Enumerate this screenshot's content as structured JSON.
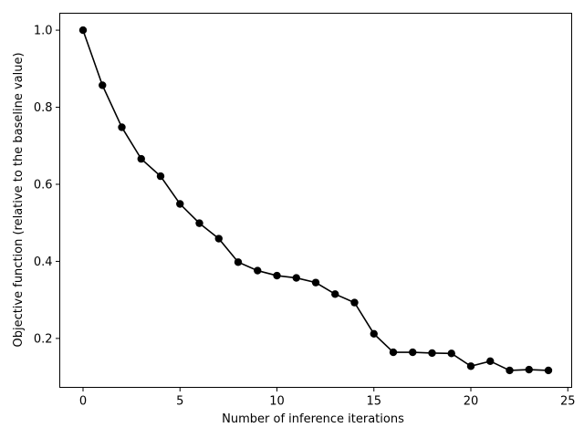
{
  "chart_data": {
    "type": "line",
    "title": "",
    "xlabel": "Number of inference iterations",
    "ylabel": "Objective function (relative to the baseline value)",
    "xlim": [
      -1.2,
      25.2
    ],
    "ylim": [
      0.073,
      1.044
    ],
    "xticks": [
      0,
      5,
      10,
      15,
      20,
      25
    ],
    "yticks": [
      0.2,
      0.4,
      0.6,
      0.8,
      1.0
    ],
    "xtick_labels": [
      "0",
      "5",
      "10",
      "15",
      "20",
      "25"
    ],
    "ytick_labels": [
      "0.2",
      "0.4",
      "0.6",
      "0.8",
      "1.0"
    ],
    "grid": false,
    "series": [
      {
        "color": "#000000",
        "marker": "circle",
        "x": [
          0,
          1,
          2,
          3,
          4,
          5,
          6,
          7,
          8,
          9,
          10,
          11,
          12,
          13,
          14,
          15,
          16,
          17,
          18,
          19,
          20,
          21,
          22,
          23,
          24
        ],
        "y": [
          1.0,
          0.857,
          0.748,
          0.666,
          0.621,
          0.549,
          0.499,
          0.459,
          0.398,
          0.376,
          0.363,
          0.357,
          0.345,
          0.315,
          0.293,
          0.212,
          0.164,
          0.164,
          0.162,
          0.161,
          0.128,
          0.141,
          0.117,
          0.119,
          0.117
        ]
      }
    ]
  }
}
